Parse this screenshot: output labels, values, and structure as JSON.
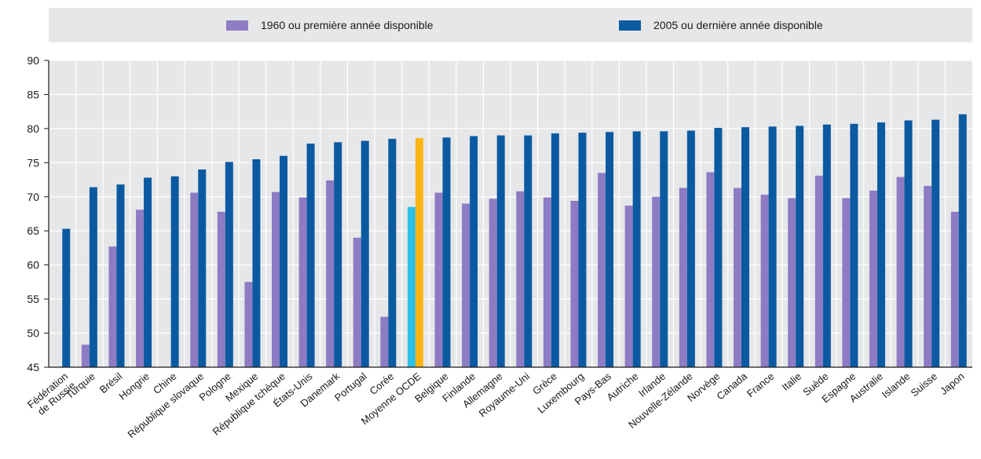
{
  "colors": {
    "series_1960": "#8d7cc3",
    "series_2005": "#0b5aa1",
    "oecd_1960": "#2ec0e6",
    "oecd_2005": "#fdb515",
    "plot_background": "#e6e7e8",
    "gridline": "#ffffff"
  },
  "legend": {
    "items": [
      {
        "label": "1960 ou première année disponible",
        "color": "#8d7cc3"
      },
      {
        "label": "2005 ou dernière année disponible",
        "color": "#0b5aa1"
      }
    ],
    "placement": "top"
  },
  "chart_data": {
    "type": "bar",
    "ylim": [
      45,
      90
    ],
    "yticks": [
      45,
      50,
      55,
      60,
      65,
      70,
      75,
      80,
      85,
      90
    ],
    "grid": true,
    "highlight_category": "Moyenne OCDE",
    "categories": [
      "Fédération de Russie",
      "Turquie",
      "Brésil",
      "Hongrie",
      "Chine",
      "République slovaque",
      "Pologne",
      "Mexique",
      "République tchèque",
      "États-Unis",
      "Danemark",
      "Portugal",
      "Corée",
      "Moyenne OCDE",
      "Belgique",
      "Finlande",
      "Allemagne",
      "Royaume-Uni",
      "Grèce",
      "Luxembourg",
      "Pays-Bas",
      "Autriche",
      "Irlande",
      "Nouvelle-Zélande",
      "Norvège",
      "Canada",
      "France",
      "Italie",
      "Suède",
      "Espagne",
      "Australie",
      "Islande",
      "Suisse",
      "Japon"
    ],
    "tick_labels": [
      [
        "Fédération",
        "de Russie"
      ],
      [
        "Turquie"
      ],
      [
        "Brésil"
      ],
      [
        "Hongrie"
      ],
      [
        "Chine"
      ],
      [
        "République slovaque"
      ],
      [
        "Pologne"
      ],
      [
        "Mexique"
      ],
      [
        "République tchèque"
      ],
      [
        "États-Unis"
      ],
      [
        "Danemark"
      ],
      [
        "Portugal"
      ],
      [
        "Corée"
      ],
      [
        "Moyenne OCDE"
      ],
      [
        "Belgique"
      ],
      [
        "Finlande"
      ],
      [
        "Allemagne"
      ],
      [
        "Royaume-Uni"
      ],
      [
        "Grèce"
      ],
      [
        "Luxembourg"
      ],
      [
        "Pays-Bas"
      ],
      [
        "Autriche"
      ],
      [
        "Irlande"
      ],
      [
        "Nouvelle-Zélande"
      ],
      [
        "Norvège"
      ],
      [
        "Canada"
      ],
      [
        "France"
      ],
      [
        "Italie"
      ],
      [
        "Suède"
      ],
      [
        "Espagne"
      ],
      [
        "Australie"
      ],
      [
        "Islande"
      ],
      [
        "Suisse"
      ],
      [
        "Japon"
      ]
    ],
    "series": [
      {
        "name": "1960 ou première année disponible",
        "values": [
          null,
          48.3,
          62.7,
          68.1,
          null,
          70.6,
          67.8,
          57.5,
          70.7,
          69.9,
          72.4,
          64.0,
          52.4,
          68.5,
          70.6,
          69.0,
          69.7,
          70.8,
          69.9,
          69.4,
          73.5,
          68.7,
          70.0,
          71.3,
          73.6,
          71.3,
          70.3,
          69.8,
          73.1,
          69.8,
          70.9,
          72.9,
          71.6,
          67.8
        ]
      },
      {
        "name": "2005 ou dernière année disponible",
        "values": [
          65.3,
          71.4,
          71.8,
          72.8,
          73.0,
          74.0,
          75.1,
          75.5,
          76.0,
          77.8,
          78.0,
          78.2,
          78.5,
          78.6,
          78.7,
          78.9,
          79.0,
          79.0,
          79.3,
          79.4,
          79.5,
          79.6,
          79.6,
          79.7,
          80.1,
          80.2,
          80.3,
          80.4,
          80.6,
          80.7,
          80.9,
          81.2,
          81.3,
          82.1
        ]
      }
    ]
  }
}
